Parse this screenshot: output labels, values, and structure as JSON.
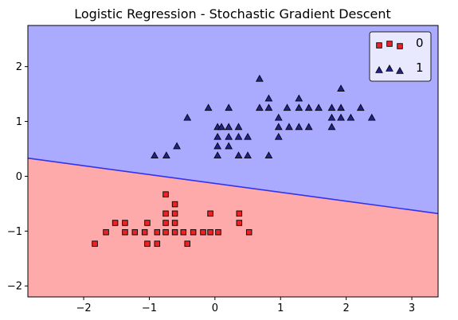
{
  "chart_data": {
    "type": "scatter",
    "title": "Logistic Regression - Stochastic Gradient Descent",
    "xlabel": "",
    "ylabel": "",
    "xlim": [
      -2.85,
      3.4
    ],
    "ylim": [
      -2.2,
      2.75
    ],
    "xticks": [
      -2,
      -1,
      0,
      1,
      2,
      3
    ],
    "yticks": [
      -2,
      -1,
      0,
      1,
      2
    ],
    "xtick_labels": [
      "−2",
      "−1",
      "0",
      "1",
      "2",
      "3"
    ],
    "ytick_labels": [
      "−2",
      "−1",
      "0",
      "1",
      "2"
    ],
    "grid": false,
    "legend_position": "top-right",
    "decision_boundary": {
      "x": [
        -2.85,
        3.4
      ],
      "y": [
        0.33,
        -0.68
      ]
    },
    "regions": [
      {
        "label": "0",
        "color": "#ffaaaa",
        "side": "below"
      },
      {
        "label": "1",
        "color": "#aaaaff",
        "side": "above"
      }
    ],
    "boundary_color": "#3333ee",
    "series": [
      {
        "name": "0",
        "marker": "square",
        "color": "#ee2222",
        "points": [
          [
            -1.83,
            -1.23
          ],
          [
            -1.66,
            -1.02
          ],
          [
            -1.52,
            -0.85
          ],
          [
            -1.37,
            -0.85
          ],
          [
            -1.37,
            -1.02
          ],
          [
            -1.22,
            -1.02
          ],
          [
            -1.07,
            -1.02
          ],
          [
            -1.03,
            -0.85
          ],
          [
            -1.03,
            -1.23
          ],
          [
            -0.88,
            -1.02
          ],
          [
            -0.88,
            -1.23
          ],
          [
            -0.75,
            -0.33
          ],
          [
            -0.75,
            -0.68
          ],
          [
            -0.75,
            -0.85
          ],
          [
            -0.75,
            -1.02
          ],
          [
            -0.61,
            -0.51
          ],
          [
            -0.61,
            -0.68
          ],
          [
            -0.61,
            -0.85
          ],
          [
            -0.61,
            -1.02
          ],
          [
            -0.48,
            -1.02
          ],
          [
            -0.42,
            -1.23
          ],
          [
            -0.33,
            -1.02
          ],
          [
            -0.18,
            -1.02
          ],
          [
            -0.07,
            -0.68
          ],
          [
            -0.07,
            -1.02
          ],
          [
            0.05,
            -1.02
          ],
          [
            0.37,
            -0.68
          ],
          [
            0.37,
            -0.85
          ],
          [
            0.52,
            -1.02
          ]
        ]
      },
      {
        "name": "1",
        "marker": "triangle",
        "color": "#222288",
        "points": [
          [
            -0.92,
            0.38
          ],
          [
            -0.74,
            0.38
          ],
          [
            -0.58,
            0.55
          ],
          [
            -0.42,
            1.07
          ],
          [
            -0.1,
            1.25
          ],
          [
            0.04,
            0.9
          ],
          [
            0.04,
            0.72
          ],
          [
            0.04,
            0.55
          ],
          [
            0.04,
            0.38
          ],
          [
            0.1,
            0.9
          ],
          [
            0.21,
            0.9
          ],
          [
            0.21,
            1.25
          ],
          [
            0.21,
            0.55
          ],
          [
            0.21,
            0.72
          ],
          [
            0.36,
            0.9
          ],
          [
            0.36,
            0.72
          ],
          [
            0.36,
            0.38
          ],
          [
            0.5,
            0.72
          ],
          [
            0.5,
            0.38
          ],
          [
            0.68,
            1.78
          ],
          [
            0.68,
            1.25
          ],
          [
            0.82,
            1.42
          ],
          [
            0.82,
            1.25
          ],
          [
            0.82,
            0.38
          ],
          [
            0.97,
            1.07
          ],
          [
            0.97,
            0.9
          ],
          [
            0.97,
            0.72
          ],
          [
            1.1,
            1.25
          ],
          [
            1.13,
            0.9
          ],
          [
            1.28,
            1.42
          ],
          [
            1.28,
            1.25
          ],
          [
            1.28,
            0.9
          ],
          [
            1.43,
            1.25
          ],
          [
            1.43,
            0.9
          ],
          [
            1.58,
            1.25
          ],
          [
            1.78,
            1.25
          ],
          [
            1.78,
            1.07
          ],
          [
            1.78,
            0.9
          ],
          [
            1.92,
            1.6
          ],
          [
            1.92,
            1.25
          ],
          [
            1.92,
            1.07
          ],
          [
            2.07,
            1.07
          ],
          [
            2.22,
            1.25
          ],
          [
            2.39,
            1.07
          ]
        ]
      }
    ]
  }
}
